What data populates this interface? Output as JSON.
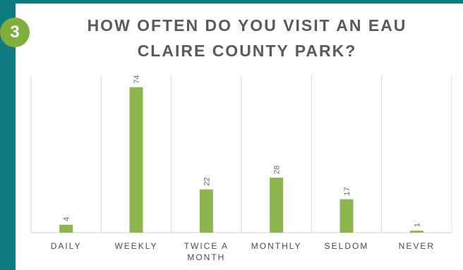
{
  "badge": {
    "number": "3"
  },
  "colors": {
    "frame": "#0e7b80",
    "badge": "#7fae3c",
    "bar": "#8db54e",
    "title": "#5a5a5a"
  },
  "chart_data": {
    "type": "bar",
    "title_lines": [
      "HOW OFTEN DO YOU VISIT AN EAU",
      "CLAIRE COUNTY PARK?"
    ],
    "categories": [
      [
        "DAILY"
      ],
      [
        "WEEKLY"
      ],
      [
        "TWICE A",
        "MONTH"
      ],
      [
        "MONTHLY"
      ],
      [
        "SELDOM"
      ],
      [
        "NEVER"
      ]
    ],
    "values": [
      4,
      74,
      22,
      28,
      17,
      1
    ],
    "data_labels": [
      "4",
      "74",
      "22",
      "28",
      "17",
      "1"
    ],
    "ylim": [
      0,
      80
    ],
    "grid": "vertical separators only",
    "legend": "none"
  }
}
